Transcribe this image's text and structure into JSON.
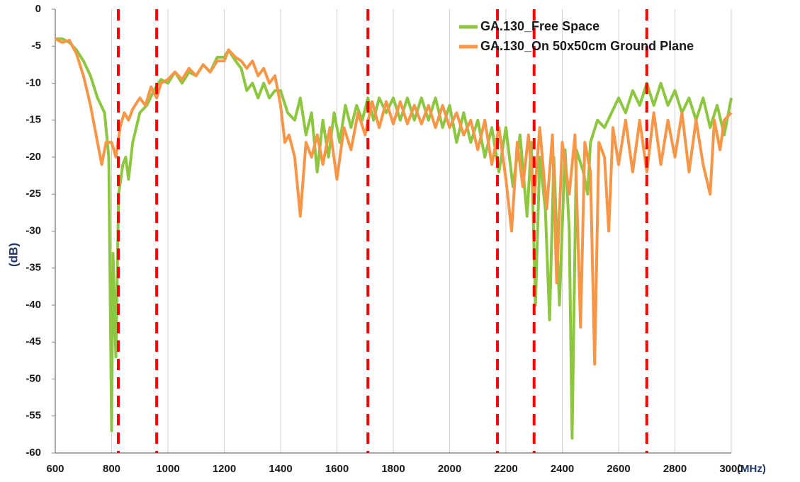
{
  "chart_data": {
    "type": "line",
    "ylabel": "(dB)",
    "xlabel": "(MHz)",
    "xlim": [
      600,
      3000
    ],
    "ylim": [
      -60,
      0
    ],
    "xticks": [
      600,
      800,
      1000,
      1200,
      1400,
      1600,
      1800,
      2000,
      2200,
      2400,
      2600,
      2800,
      3000
    ],
    "yticks": [
      0,
      -5,
      -10,
      -15,
      -20,
      -25,
      -30,
      -35,
      -40,
      -45,
      -50,
      -55,
      -60
    ],
    "grid": "x",
    "legend": "upper right",
    "vlines": [
      824,
      960,
      1710,
      2170,
      2300,
      2700
    ],
    "vline_color": "#ff0000",
    "series": [
      {
        "name": "GA.130_Free Space",
        "color": "#8dc63f",
        "x": [
          600,
          625,
          650,
          675,
          700,
          725,
          750,
          775,
          790,
          800,
          805,
          815,
          825,
          840,
          850,
          860,
          875,
          900,
          925,
          950,
          975,
          1000,
          1025,
          1050,
          1075,
          1100,
          1125,
          1150,
          1175,
          1200,
          1215,
          1240,
          1260,
          1280,
          1300,
          1320,
          1340,
          1360,
          1380,
          1400,
          1425,
          1450,
          1470,
          1490,
          1510,
          1530,
          1550,
          1570,
          1590,
          1610,
          1630,
          1650,
          1670,
          1690,
          1710,
          1730,
          1750,
          1775,
          1800,
          1825,
          1850,
          1875,
          1900,
          1925,
          1950,
          1975,
          2000,
          2025,
          2050,
          2075,
          2100,
          2125,
          2150,
          2175,
          2200,
          2225,
          2250,
          2275,
          2290,
          2305,
          2320,
          2340,
          2355,
          2370,
          2390,
          2410,
          2425,
          2435,
          2450,
          2475,
          2490,
          2500,
          2525,
          2550,
          2575,
          2600,
          2625,
          2650,
          2675,
          2700,
          2725,
          2750,
          2775,
          2800,
          2825,
          2850,
          2875,
          2900,
          2925,
          2950,
          2975,
          3000
        ],
        "values": [
          -4,
          -4,
          -4.5,
          -5.5,
          -7,
          -9,
          -12,
          -14,
          -20,
          -57,
          -33,
          -47,
          -25,
          -21,
          -20,
          -23,
          -18,
          -14,
          -13,
          -11,
          -9.5,
          -10,
          -8.5,
          -10,
          -8.5,
          -9,
          -7.5,
          -8.5,
          -6.5,
          -6.5,
          -5.5,
          -7,
          -8,
          -11,
          -10,
          -12,
          -10,
          -12,
          -11,
          -11,
          -14,
          -15,
          -12,
          -17,
          -14,
          -22,
          -15,
          -20,
          -14,
          -18,
          -13,
          -16,
          -13,
          -15,
          -12,
          -15,
          -12,
          -14,
          -12,
          -15,
          -12,
          -15,
          -12,
          -15,
          -12,
          -16,
          -13,
          -18,
          -14,
          -18,
          -15,
          -20,
          -16,
          -22,
          -16,
          -24,
          -17,
          -28,
          -18,
          -40,
          -20,
          -27,
          -42,
          -20,
          -40,
          -19,
          -30,
          -58,
          -19,
          -22,
          -25,
          -18,
          -15,
          -16,
          -14,
          -12,
          -14,
          -11,
          -13,
          -10,
          -13,
          -10,
          -13,
          -11,
          -14,
          -12,
          -15,
          -12,
          -16,
          -13,
          -17,
          -12
        ]
      },
      {
        "name": "GA.130_On 50x50cm Ground Plane",
        "color": "#f79646",
        "x": [
          600,
          625,
          650,
          675,
          700,
          725,
          750,
          765,
          780,
          800,
          815,
          830,
          845,
          860,
          875,
          900,
          920,
          940,
          960,
          975,
          1000,
          1025,
          1050,
          1075,
          1100,
          1125,
          1150,
          1175,
          1200,
          1215,
          1240,
          1260,
          1280,
          1300,
          1320,
          1340,
          1360,
          1380,
          1400,
          1415,
          1430,
          1450,
          1470,
          1490,
          1510,
          1530,
          1550,
          1575,
          1600,
          1625,
          1650,
          1675,
          1700,
          1725,
          1750,
          1775,
          1800,
          1825,
          1850,
          1875,
          1900,
          1925,
          1950,
          1975,
          2000,
          2025,
          2050,
          2075,
          2100,
          2125,
          2150,
          2175,
          2200,
          2220,
          2240,
          2260,
          2280,
          2300,
          2320,
          2345,
          2365,
          2380,
          2400,
          2425,
          2445,
          2465,
          2480,
          2500,
          2515,
          2530,
          2550,
          2565,
          2580,
          2600,
          2625,
          2650,
          2675,
          2700,
          2725,
          2750,
          2775,
          2800,
          2825,
          2850,
          2875,
          2900,
          2925,
          2940,
          2960,
          2975,
          3000
        ],
        "values": [
          -4,
          -4.5,
          -4.2,
          -6,
          -9,
          -13,
          -18,
          -21,
          -18,
          -18,
          -20,
          -16,
          -14,
          -15,
          -13.5,
          -12,
          -13,
          -10.5,
          -12,
          -10,
          -9.5,
          -8.5,
          -9.5,
          -8,
          -9,
          -7.5,
          -8.5,
          -7,
          -7,
          -5.5,
          -6.5,
          -7,
          -8,
          -7,
          -9,
          -8,
          -10,
          -9,
          -13,
          -18,
          -17,
          -20,
          -28,
          -18,
          -20,
          -17,
          -21,
          -16,
          -23,
          -16,
          -19,
          -14,
          -17,
          -12.5,
          -16,
          -12.5,
          -15.5,
          -12.5,
          -15.5,
          -13,
          -15.5,
          -13,
          -16,
          -13,
          -16,
          -14,
          -17,
          -15,
          -19,
          -15,
          -21,
          -16,
          -23,
          -30,
          -18,
          -24,
          -17,
          -26,
          -16,
          -27,
          -17,
          -37,
          -18,
          -25,
          -17,
          -43,
          -18,
          -22,
          -48,
          -18,
          -20,
          -30,
          -16,
          -21,
          -15,
          -22,
          -15,
          -22,
          -14,
          -21,
          -15,
          -20,
          -14,
          -22,
          -15,
          -21,
          -25,
          -15,
          -19,
          -15,
          -14
        ]
      }
    ]
  }
}
